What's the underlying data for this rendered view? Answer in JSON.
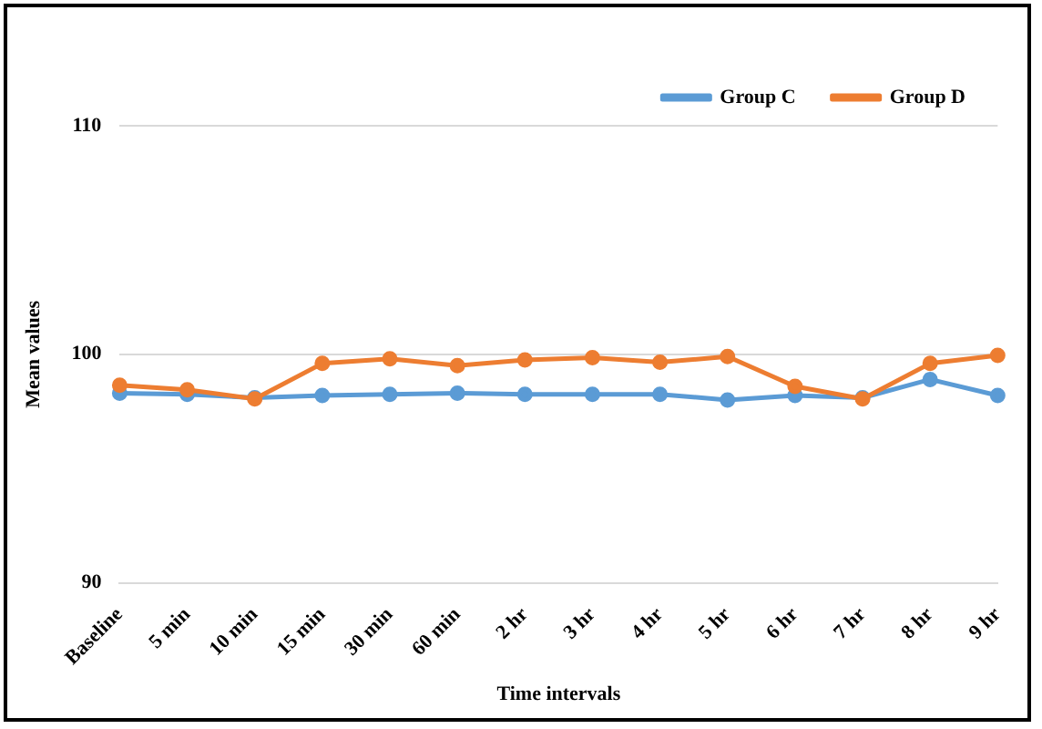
{
  "chart_data": {
    "type": "line",
    "xlabel": "Time intervals",
    "ylabel": "Mean values",
    "categories": [
      "Baseline",
      "5 min",
      "10 min",
      "15 min",
      "30 min",
      "60 min",
      "2 hr",
      "3 hr",
      "4 hr",
      "5 hr",
      "6 hr",
      "7 hr",
      "8 hr",
      "9 hr"
    ],
    "series": [
      {
        "name": "Group C",
        "color": "#5b9bd5",
        "values": [
          98.3,
          98.25,
          98.1,
          98.2,
          98.25,
          98.3,
          98.25,
          98.25,
          98.25,
          98.0,
          98.2,
          98.1,
          98.9,
          98.2
        ]
      },
      {
        "name": "Group D",
        "color": "#ed7d31",
        "values": [
          98.65,
          98.45,
          98.05,
          99.6,
          99.8,
          99.5,
          99.75,
          99.85,
          99.65,
          99.9,
          98.6,
          98.05,
          99.6,
          99.95
        ]
      }
    ],
    "ylim": [
      90,
      110
    ],
    "yticks": [
      90,
      100,
      110
    ],
    "grid": "y",
    "legend": "top right",
    "marker": "circle",
    "line_style": "solid"
  }
}
